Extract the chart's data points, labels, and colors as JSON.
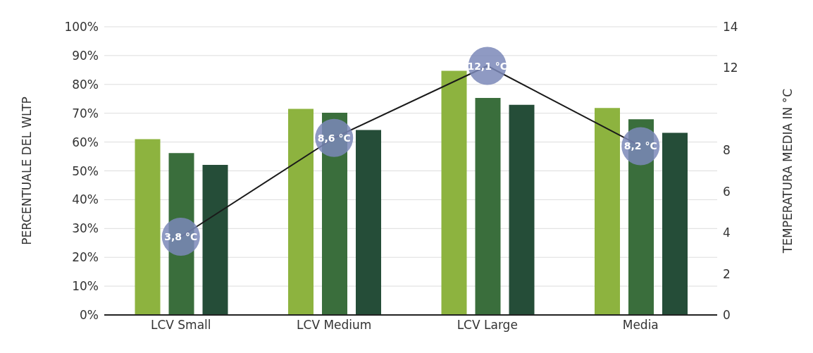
{
  "chart_data": {
    "type": "bar",
    "ylabel": "PERCENTUALE DEL WLTP",
    "y2label": "TEMPERATURA MEDIA IN °C",
    "categories": [
      "LCV Small",
      "LCV Medium",
      "LCV Large",
      "Media"
    ],
    "series": [
      {
        "color": "#8db33f",
        "values": [
          61,
          71.5,
          84.7,
          71.8
        ]
      },
      {
        "color": "#3a6e3c",
        "values": [
          56.2,
          70.2,
          75.3,
          67.9
        ]
      },
      {
        "color": "#254d38",
        "values": [
          52.1,
          64.2,
          72.9,
          63.2
        ]
      },
      {
        "type": "line",
        "axis": "y2",
        "color": "#1a1a1a",
        "values": [
          3.8,
          8.6,
          12.1,
          8.2
        ]
      },
      {
        "type": "scatter",
        "axis": "y2",
        "color": "#7b88b8",
        "marker": "circle",
        "values": [
          3.8,
          8.6,
          12.1,
          8.2
        ],
        "value_labels": [
          "3,8 °C",
          "8,6 °C",
          "12,1 °C",
          "8,2 °C"
        ]
      }
    ],
    "ylim": [
      0,
      100
    ],
    "yticks": [
      {
        "value": 0,
        "label": "0%"
      },
      {
        "value": 10,
        "label": "10%"
      },
      {
        "value": 20,
        "label": "20%"
      },
      {
        "value": 30,
        "label": "30%"
      },
      {
        "value": 40,
        "label": "40%"
      },
      {
        "value": 50,
        "label": "50%"
      },
      {
        "value": 60,
        "label": "60%"
      },
      {
        "value": 70,
        "label": "70%"
      },
      {
        "value": 80,
        "label": "80%"
      },
      {
        "value": 90,
        "label": "90%"
      },
      {
        "value": 100,
        "label": "100%"
      }
    ],
    "y2lim": [
      0,
      14
    ],
    "y2ticks": [
      0,
      2,
      4,
      6,
      8,
      12,
      14
    ],
    "grid": "y",
    "legend": false
  }
}
